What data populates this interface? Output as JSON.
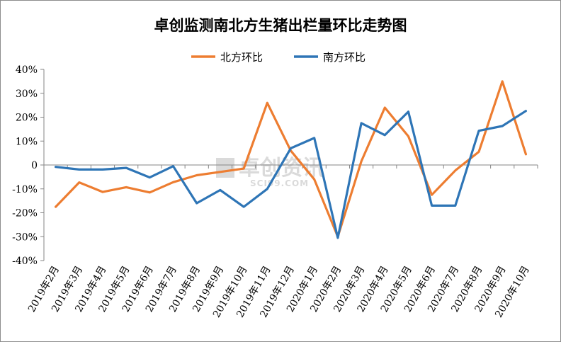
{
  "chart_data": {
    "type": "line",
    "title": "卓创监测南北方生猪出栏量环比走势图",
    "categories": [
      "2019年2月",
      "2019年3月",
      "2019年4月",
      "2019年5月",
      "2019年6月",
      "2019年7月",
      "2019年8月",
      "2019年9月",
      "2019年10月",
      "2019年11月",
      "2019年12月",
      "2020年1月",
      "2020年2月",
      "2020年3月",
      "2020年4月",
      "2020年5月",
      "2020年6月",
      "2020年7月",
      "2020年8月",
      "2020年9月",
      "2020年10月"
    ],
    "series": [
      {
        "name": "北方环比",
        "color": "#ED7D31",
        "values": [
          -17.5,
          -7.3,
          -11.3,
          -9.3,
          -11.5,
          -7.2,
          -4.3,
          -2.9,
          -1.5,
          26,
          6,
          -6,
          -30,
          1.5,
          24,
          12,
          -12.5,
          -2.3,
          5.5,
          35,
          4.5
        ]
      },
      {
        "name": "南方环比",
        "color": "#2E75B6",
        "values": [
          -0.8,
          -1.9,
          -1.9,
          -1.2,
          -5.2,
          -0.5,
          -16,
          -10.5,
          -17.5,
          -10,
          7,
          11.3,
          -30.5,
          17.5,
          12.5,
          22.3,
          -17,
          -17,
          14.3,
          16.3,
          22.6
        ]
      }
    ],
    "yticks": [
      "40%",
      "30%",
      "20%",
      "10%",
      "0",
      "-10%",
      "-20%",
      "-30%",
      "-40%"
    ],
    "ylim": [
      -40,
      40
    ],
    "ystep": 10,
    "xlabel": "",
    "ylabel": "",
    "legend": "top-center",
    "grid": false
  },
  "watermark": {
    "text_cn": "卓创资讯",
    "text_en": "SCI99.COM",
    "color": "#d6d6d6"
  }
}
